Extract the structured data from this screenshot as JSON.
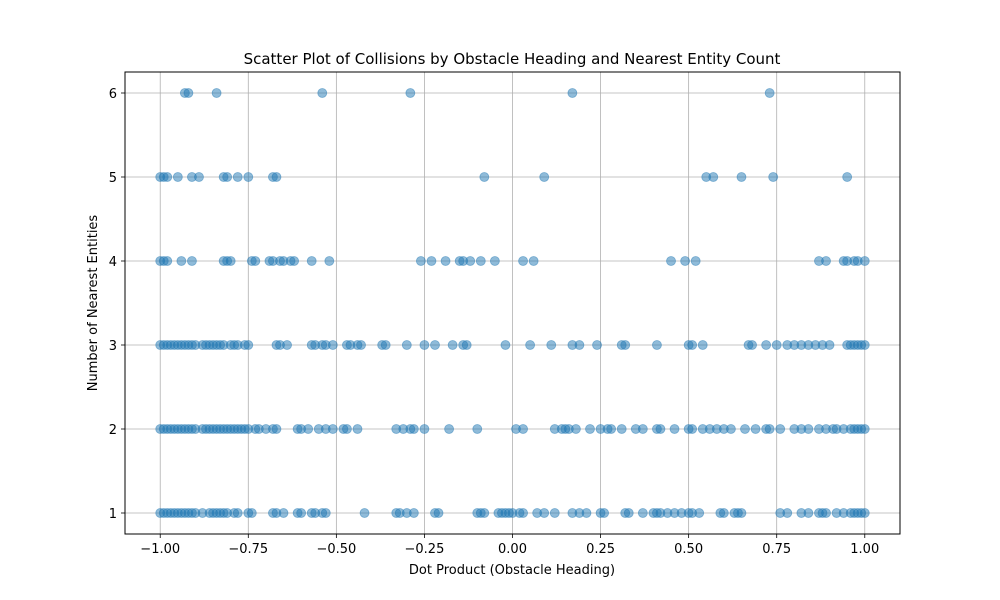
{
  "chart_data": {
    "type": "scatter",
    "title": "Scatter Plot of Collisions by Obstacle Heading and Nearest Entity Count",
    "xlabel": "Dot Product (Obstacle Heading)",
    "ylabel": "Number of Nearest Entities",
    "xlim": [
      -1.1,
      1.1
    ],
    "ylim": [
      0.75,
      6.25
    ],
    "xticks": [
      -1.0,
      -0.75,
      -0.5,
      -0.25,
      0.0,
      0.25,
      0.5,
      0.75,
      1.0
    ],
    "xtick_labels": [
      "−1.00",
      "−0.75",
      "−0.50",
      "−0.25",
      "0.00",
      "0.25",
      "0.50",
      "0.75",
      "1.00"
    ],
    "yticks": [
      1,
      2,
      3,
      4,
      5,
      6
    ],
    "ytick_labels": [
      "1",
      "2",
      "3",
      "4",
      "5",
      "6"
    ],
    "grid": true,
    "point_color": "#1f77b4",
    "point_alpha": 0.5,
    "series": [
      {
        "points": [
          [
            -0.93,
            6
          ],
          [
            -0.92,
            6
          ],
          [
            -0.84,
            6
          ],
          [
            -0.54,
            6
          ],
          [
            -0.29,
            6
          ],
          [
            0.17,
            6
          ],
          [
            0.73,
            6
          ],
          [
            -1.0,
            5
          ],
          [
            -0.99,
            5
          ],
          [
            -0.98,
            5
          ],
          [
            -0.95,
            5
          ],
          [
            -0.91,
            5
          ],
          [
            -0.89,
            5
          ],
          [
            -0.82,
            5
          ],
          [
            -0.81,
            5
          ],
          [
            -0.78,
            5
          ],
          [
            -0.75,
            5
          ],
          [
            -0.68,
            5
          ],
          [
            -0.67,
            5
          ],
          [
            -0.08,
            5
          ],
          [
            0.09,
            5
          ],
          [
            0.55,
            5
          ],
          [
            0.57,
            5
          ],
          [
            0.65,
            5
          ],
          [
            0.74,
            5
          ],
          [
            0.95,
            5
          ],
          [
            -1.0,
            4
          ],
          [
            -0.99,
            4
          ],
          [
            -0.98,
            4
          ],
          [
            -0.94,
            4
          ],
          [
            -0.91,
            4
          ],
          [
            -0.82,
            4
          ],
          [
            -0.81,
            4
          ],
          [
            -0.8,
            4
          ],
          [
            -0.74,
            4
          ],
          [
            -0.73,
            4
          ],
          [
            -0.69,
            4
          ],
          [
            -0.68,
            4
          ],
          [
            -0.66,
            4
          ],
          [
            -0.65,
            4
          ],
          [
            -0.63,
            4
          ],
          [
            -0.62,
            4
          ],
          [
            -0.57,
            4
          ],
          [
            -0.52,
            4
          ],
          [
            -0.26,
            4
          ],
          [
            -0.23,
            4
          ],
          [
            -0.19,
            4
          ],
          [
            -0.15,
            4
          ],
          [
            -0.14,
            4
          ],
          [
            -0.12,
            4
          ],
          [
            -0.09,
            4
          ],
          [
            -0.05,
            4
          ],
          [
            0.03,
            4
          ],
          [
            0.06,
            4
          ],
          [
            0.45,
            4
          ],
          [
            0.49,
            4
          ],
          [
            0.52,
            4
          ],
          [
            0.87,
            4
          ],
          [
            0.89,
            4
          ],
          [
            0.94,
            4
          ],
          [
            0.95,
            4
          ],
          [
            0.97,
            4
          ],
          [
            0.98,
            4
          ],
          [
            1.0,
            4
          ],
          [
            -1.0,
            3
          ],
          [
            -0.99,
            3
          ],
          [
            -0.98,
            3
          ],
          [
            -0.97,
            3
          ],
          [
            -0.96,
            3
          ],
          [
            -0.95,
            3
          ],
          [
            -0.94,
            3
          ],
          [
            -0.93,
            3
          ],
          [
            -0.92,
            3
          ],
          [
            -0.91,
            3
          ],
          [
            -0.9,
            3
          ],
          [
            -0.88,
            3
          ],
          [
            -0.87,
            3
          ],
          [
            -0.86,
            3
          ],
          [
            -0.85,
            3
          ],
          [
            -0.84,
            3
          ],
          [
            -0.83,
            3
          ],
          [
            -0.82,
            3
          ],
          [
            -0.8,
            3
          ],
          [
            -0.79,
            3
          ],
          [
            -0.78,
            3
          ],
          [
            -0.76,
            3
          ],
          [
            -0.75,
            3
          ],
          [
            -0.67,
            3
          ],
          [
            -0.66,
            3
          ],
          [
            -0.64,
            3
          ],
          [
            -0.57,
            3
          ],
          [
            -0.56,
            3
          ],
          [
            -0.54,
            3
          ],
          [
            -0.53,
            3
          ],
          [
            -0.51,
            3
          ],
          [
            -0.47,
            3
          ],
          [
            -0.46,
            3
          ],
          [
            -0.44,
            3
          ],
          [
            -0.43,
            3
          ],
          [
            -0.37,
            3
          ],
          [
            -0.36,
            3
          ],
          [
            -0.3,
            3
          ],
          [
            -0.25,
            3
          ],
          [
            -0.22,
            3
          ],
          [
            -0.17,
            3
          ],
          [
            -0.14,
            3
          ],
          [
            -0.13,
            3
          ],
          [
            -0.02,
            3
          ],
          [
            0.05,
            3
          ],
          [
            0.11,
            3
          ],
          [
            0.17,
            3
          ],
          [
            0.19,
            3
          ],
          [
            0.24,
            3
          ],
          [
            0.31,
            3
          ],
          [
            0.32,
            3
          ],
          [
            0.41,
            3
          ],
          [
            0.5,
            3
          ],
          [
            0.51,
            3
          ],
          [
            0.54,
            3
          ],
          [
            0.67,
            3
          ],
          [
            0.68,
            3
          ],
          [
            0.72,
            3
          ],
          [
            0.75,
            3
          ],
          [
            0.78,
            3
          ],
          [
            0.8,
            3
          ],
          [
            0.82,
            3
          ],
          [
            0.84,
            3
          ],
          [
            0.86,
            3
          ],
          [
            0.88,
            3
          ],
          [
            0.9,
            3
          ],
          [
            0.95,
            3
          ],
          [
            0.96,
            3
          ],
          [
            0.97,
            3
          ],
          [
            0.98,
            3
          ],
          [
            0.99,
            3
          ],
          [
            1.0,
            3
          ],
          [
            -1.0,
            2
          ],
          [
            -0.99,
            2
          ],
          [
            -0.98,
            2
          ],
          [
            -0.97,
            2
          ],
          [
            -0.96,
            2
          ],
          [
            -0.95,
            2
          ],
          [
            -0.94,
            2
          ],
          [
            -0.93,
            2
          ],
          [
            -0.92,
            2
          ],
          [
            -0.91,
            2
          ],
          [
            -0.9,
            2
          ],
          [
            -0.88,
            2
          ],
          [
            -0.87,
            2
          ],
          [
            -0.86,
            2
          ],
          [
            -0.85,
            2
          ],
          [
            -0.84,
            2
          ],
          [
            -0.83,
            2
          ],
          [
            -0.82,
            2
          ],
          [
            -0.81,
            2
          ],
          [
            -0.8,
            2
          ],
          [
            -0.79,
            2
          ],
          [
            -0.78,
            2
          ],
          [
            -0.77,
            2
          ],
          [
            -0.76,
            2
          ],
          [
            -0.75,
            2
          ],
          [
            -0.73,
            2
          ],
          [
            -0.72,
            2
          ],
          [
            -0.7,
            2
          ],
          [
            -0.68,
            2
          ],
          [
            -0.67,
            2
          ],
          [
            -0.61,
            2
          ],
          [
            -0.6,
            2
          ],
          [
            -0.58,
            2
          ],
          [
            -0.55,
            2
          ],
          [
            -0.53,
            2
          ],
          [
            -0.51,
            2
          ],
          [
            -0.48,
            2
          ],
          [
            -0.47,
            2
          ],
          [
            -0.44,
            2
          ],
          [
            -0.33,
            2
          ],
          [
            -0.31,
            2
          ],
          [
            -0.29,
            2
          ],
          [
            -0.28,
            2
          ],
          [
            -0.25,
            2
          ],
          [
            -0.18,
            2
          ],
          [
            -0.1,
            2
          ],
          [
            0.01,
            2
          ],
          [
            0.03,
            2
          ],
          [
            0.12,
            2
          ],
          [
            0.14,
            2
          ],
          [
            0.15,
            2
          ],
          [
            0.16,
            2
          ],
          [
            0.18,
            2
          ],
          [
            0.22,
            2
          ],
          [
            0.25,
            2
          ],
          [
            0.27,
            2
          ],
          [
            0.28,
            2
          ],
          [
            0.31,
            2
          ],
          [
            0.35,
            2
          ],
          [
            0.37,
            2
          ],
          [
            0.41,
            2
          ],
          [
            0.42,
            2
          ],
          [
            0.46,
            2
          ],
          [
            0.5,
            2
          ],
          [
            0.51,
            2
          ],
          [
            0.54,
            2
          ],
          [
            0.56,
            2
          ],
          [
            0.58,
            2
          ],
          [
            0.6,
            2
          ],
          [
            0.62,
            2
          ],
          [
            0.66,
            2
          ],
          [
            0.69,
            2
          ],
          [
            0.72,
            2
          ],
          [
            0.73,
            2
          ],
          [
            0.76,
            2
          ],
          [
            0.8,
            2
          ],
          [
            0.82,
            2
          ],
          [
            0.84,
            2
          ],
          [
            0.87,
            2
          ],
          [
            0.89,
            2
          ],
          [
            0.91,
            2
          ],
          [
            0.92,
            2
          ],
          [
            0.94,
            2
          ],
          [
            0.96,
            2
          ],
          [
            0.97,
            2
          ],
          [
            0.98,
            2
          ],
          [
            0.99,
            2
          ],
          [
            1.0,
            2
          ],
          [
            -1.0,
            1
          ],
          [
            -0.99,
            1
          ],
          [
            -0.98,
            1
          ],
          [
            -0.97,
            1
          ],
          [
            -0.96,
            1
          ],
          [
            -0.95,
            1
          ],
          [
            -0.94,
            1
          ],
          [
            -0.93,
            1
          ],
          [
            -0.92,
            1
          ],
          [
            -0.91,
            1
          ],
          [
            -0.9,
            1
          ],
          [
            -0.88,
            1
          ],
          [
            -0.86,
            1
          ],
          [
            -0.85,
            1
          ],
          [
            -0.84,
            1
          ],
          [
            -0.83,
            1
          ],
          [
            -0.82,
            1
          ],
          [
            -0.81,
            1
          ],
          [
            -0.79,
            1
          ],
          [
            -0.78,
            1
          ],
          [
            -0.75,
            1
          ],
          [
            -0.74,
            1
          ],
          [
            -0.68,
            1
          ],
          [
            -0.67,
            1
          ],
          [
            -0.65,
            1
          ],
          [
            -0.61,
            1
          ],
          [
            -0.6,
            1
          ],
          [
            -0.57,
            1
          ],
          [
            -0.56,
            1
          ],
          [
            -0.54,
            1
          ],
          [
            -0.53,
            1
          ],
          [
            -0.42,
            1
          ],
          [
            -0.33,
            1
          ],
          [
            -0.32,
            1
          ],
          [
            -0.3,
            1
          ],
          [
            -0.28,
            1
          ],
          [
            -0.22,
            1
          ],
          [
            -0.21,
            1
          ],
          [
            -0.1,
            1
          ],
          [
            -0.09,
            1
          ],
          [
            -0.08,
            1
          ],
          [
            -0.04,
            1
          ],
          [
            -0.03,
            1
          ],
          [
            -0.02,
            1
          ],
          [
            -0.01,
            1
          ],
          [
            0.0,
            1
          ],
          [
            0.02,
            1
          ],
          [
            0.03,
            1
          ],
          [
            0.07,
            1
          ],
          [
            0.09,
            1
          ],
          [
            0.12,
            1
          ],
          [
            0.17,
            1
          ],
          [
            0.19,
            1
          ],
          [
            0.21,
            1
          ],
          [
            0.25,
            1
          ],
          [
            0.26,
            1
          ],
          [
            0.32,
            1
          ],
          [
            0.33,
            1
          ],
          [
            0.37,
            1
          ],
          [
            0.4,
            1
          ],
          [
            0.41,
            1
          ],
          [
            0.42,
            1
          ],
          [
            0.44,
            1
          ],
          [
            0.46,
            1
          ],
          [
            0.48,
            1
          ],
          [
            0.5,
            1
          ],
          [
            0.51,
            1
          ],
          [
            0.53,
            1
          ],
          [
            0.59,
            1
          ],
          [
            0.6,
            1
          ],
          [
            0.63,
            1
          ],
          [
            0.64,
            1
          ],
          [
            0.65,
            1
          ],
          [
            0.76,
            1
          ],
          [
            0.78,
            1
          ],
          [
            0.82,
            1
          ],
          [
            0.84,
            1
          ],
          [
            0.87,
            1
          ],
          [
            0.88,
            1
          ],
          [
            0.89,
            1
          ],
          [
            0.92,
            1
          ],
          [
            0.94,
            1
          ],
          [
            0.96,
            1
          ],
          [
            0.97,
            1
          ],
          [
            0.98,
            1
          ],
          [
            0.99,
            1
          ],
          [
            1.0,
            1
          ]
        ]
      }
    ]
  }
}
